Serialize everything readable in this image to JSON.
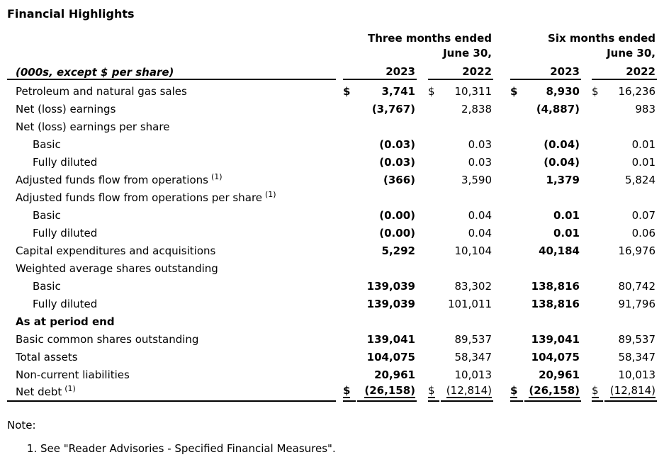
{
  "title": "Financial Highlights",
  "table": {
    "unit_label": "(000s, except $ per share)",
    "period_headers": [
      "Three months ended\nJune 30,",
      "Six months ended\nJune 30,"
    ],
    "years": [
      "2023",
      "2022",
      "2023",
      "2022"
    ],
    "rows": [
      {
        "label": "Petroleum and natural gas sales",
        "indent": false,
        "bold": false,
        "sup": "",
        "currency": [
          "$",
          "$",
          "$",
          "$"
        ],
        "values": [
          "3,741",
          "10,311",
          "8,930",
          "16,236"
        ],
        "total": false
      },
      {
        "label": "Net (loss) earnings",
        "indent": false,
        "bold": false,
        "sup": "",
        "currency": [],
        "values": [
          "(3,767)",
          "2,838",
          "(4,887)",
          "983"
        ],
        "total": false
      },
      {
        "label": "Net (loss) earnings per share",
        "indent": false,
        "bold": false,
        "sup": "",
        "currency": [],
        "values": [],
        "total": false
      },
      {
        "label": "Basic",
        "indent": true,
        "bold": false,
        "sup": "",
        "currency": [],
        "values": [
          "(0.03)",
          "0.03",
          "(0.04)",
          "0.01"
        ],
        "total": false
      },
      {
        "label": "Fully diluted",
        "indent": true,
        "bold": false,
        "sup": "",
        "currency": [],
        "values": [
          "(0.03)",
          "0.03",
          "(0.04)",
          "0.01"
        ],
        "total": false
      },
      {
        "label": "Adjusted funds flow from operations",
        "indent": false,
        "bold": false,
        "sup": "(1)",
        "currency": [],
        "values": [
          "(366)",
          "3,590",
          "1,379",
          "5,824"
        ],
        "total": false
      },
      {
        "label": "Adjusted funds flow from operations per share",
        "indent": false,
        "bold": false,
        "sup": "(1)",
        "currency": [],
        "values": [],
        "total": false
      },
      {
        "label": "Basic",
        "indent": true,
        "bold": false,
        "sup": "",
        "currency": [],
        "values": [
          "(0.00)",
          "0.04",
          "0.01",
          "0.07"
        ],
        "total": false
      },
      {
        "label": "Fully diluted",
        "indent": true,
        "bold": false,
        "sup": "",
        "currency": [],
        "values": [
          "(0.00)",
          "0.04",
          "0.01",
          "0.06"
        ],
        "total": false
      },
      {
        "label": "Capital expenditures and acquisitions",
        "indent": false,
        "bold": false,
        "sup": "",
        "currency": [],
        "values": [
          "5,292",
          "10,104",
          "40,184",
          "16,976"
        ],
        "total": false
      },
      {
        "label": "Weighted average shares outstanding",
        "indent": false,
        "bold": false,
        "sup": "",
        "currency": [],
        "values": [],
        "total": false
      },
      {
        "label": "Basic",
        "indent": true,
        "bold": false,
        "sup": "",
        "currency": [],
        "values": [
          "139,039",
          "83,302",
          "138,816",
          "80,742"
        ],
        "total": false
      },
      {
        "label": "Fully diluted",
        "indent": true,
        "bold": false,
        "sup": "",
        "currency": [],
        "values": [
          "139,039",
          "101,011",
          "138,816",
          "91,796"
        ],
        "total": false
      },
      {
        "label": "As at period end",
        "indent": false,
        "bold": true,
        "sup": "",
        "currency": [],
        "values": [],
        "total": false
      },
      {
        "label": "Basic common shares outstanding",
        "indent": false,
        "bold": false,
        "sup": "",
        "currency": [],
        "values": [
          "139,041",
          "89,537",
          "139,041",
          "89,537"
        ],
        "total": false
      },
      {
        "label": "Total assets",
        "indent": false,
        "bold": false,
        "sup": "",
        "currency": [],
        "values": [
          "104,075",
          "58,347",
          "104,075",
          "58,347"
        ],
        "total": false
      },
      {
        "label": "Non-current liabilities",
        "indent": false,
        "bold": false,
        "sup": "",
        "currency": [],
        "values": [
          "20,961",
          "10,013",
          "20,961",
          "10,013"
        ],
        "total": false
      },
      {
        "label": "Net debt",
        "indent": false,
        "bold": false,
        "sup": "(1)",
        "currency": [
          "$",
          "$",
          "$",
          "$"
        ],
        "values": [
          "(26,158)",
          "(12,814)",
          "(26,158)",
          "(12,814)"
        ],
        "total": true
      }
    ]
  },
  "note": {
    "heading": "Note:",
    "items": [
      "See \"Reader Advisories - Specified Financial Measures\"."
    ]
  }
}
